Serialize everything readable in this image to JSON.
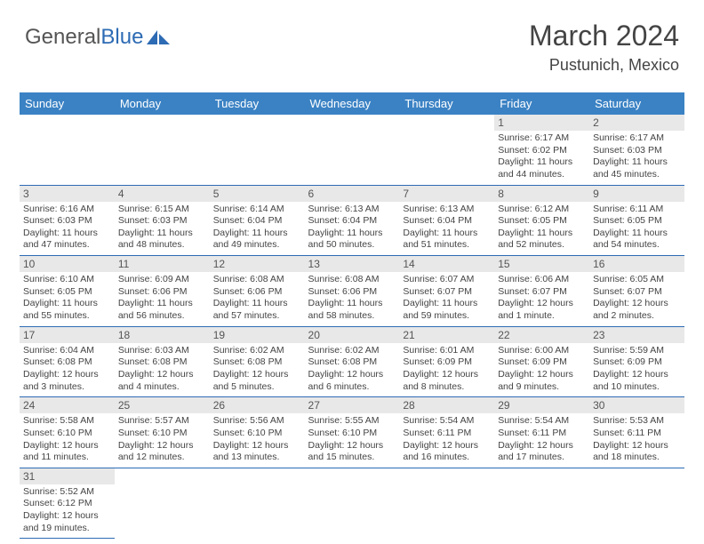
{
  "logo": {
    "text_a": "General",
    "text_b": "Blue"
  },
  "header": {
    "month_title": "March 2024",
    "location": "Pustunich, Mexico"
  },
  "colors": {
    "header_bg": "#3b82c4",
    "header_text": "#ffffff",
    "daynum_bg": "#e8e8e8",
    "border": "#2d6bb4",
    "text": "#444444",
    "logo_gray": "#555555",
    "logo_blue": "#2d6bb4"
  },
  "day_names": [
    "Sunday",
    "Monday",
    "Tuesday",
    "Wednesday",
    "Thursday",
    "Friday",
    "Saturday"
  ],
  "weeks": [
    [
      {
        "n": "",
        "sr": "",
        "ss": "",
        "dl": ""
      },
      {
        "n": "",
        "sr": "",
        "ss": "",
        "dl": ""
      },
      {
        "n": "",
        "sr": "",
        "ss": "",
        "dl": ""
      },
      {
        "n": "",
        "sr": "",
        "ss": "",
        "dl": ""
      },
      {
        "n": "",
        "sr": "",
        "ss": "",
        "dl": ""
      },
      {
        "n": "1",
        "sr": "Sunrise: 6:17 AM",
        "ss": "Sunset: 6:02 PM",
        "dl": "Daylight: 11 hours and 44 minutes."
      },
      {
        "n": "2",
        "sr": "Sunrise: 6:17 AM",
        "ss": "Sunset: 6:03 PM",
        "dl": "Daylight: 11 hours and 45 minutes."
      }
    ],
    [
      {
        "n": "3",
        "sr": "Sunrise: 6:16 AM",
        "ss": "Sunset: 6:03 PM",
        "dl": "Daylight: 11 hours and 47 minutes."
      },
      {
        "n": "4",
        "sr": "Sunrise: 6:15 AM",
        "ss": "Sunset: 6:03 PM",
        "dl": "Daylight: 11 hours and 48 minutes."
      },
      {
        "n": "5",
        "sr": "Sunrise: 6:14 AM",
        "ss": "Sunset: 6:04 PM",
        "dl": "Daylight: 11 hours and 49 minutes."
      },
      {
        "n": "6",
        "sr": "Sunrise: 6:13 AM",
        "ss": "Sunset: 6:04 PM",
        "dl": "Daylight: 11 hours and 50 minutes."
      },
      {
        "n": "7",
        "sr": "Sunrise: 6:13 AM",
        "ss": "Sunset: 6:04 PM",
        "dl": "Daylight: 11 hours and 51 minutes."
      },
      {
        "n": "8",
        "sr": "Sunrise: 6:12 AM",
        "ss": "Sunset: 6:05 PM",
        "dl": "Daylight: 11 hours and 52 minutes."
      },
      {
        "n": "9",
        "sr": "Sunrise: 6:11 AM",
        "ss": "Sunset: 6:05 PM",
        "dl": "Daylight: 11 hours and 54 minutes."
      }
    ],
    [
      {
        "n": "10",
        "sr": "Sunrise: 6:10 AM",
        "ss": "Sunset: 6:05 PM",
        "dl": "Daylight: 11 hours and 55 minutes."
      },
      {
        "n": "11",
        "sr": "Sunrise: 6:09 AM",
        "ss": "Sunset: 6:06 PM",
        "dl": "Daylight: 11 hours and 56 minutes."
      },
      {
        "n": "12",
        "sr": "Sunrise: 6:08 AM",
        "ss": "Sunset: 6:06 PM",
        "dl": "Daylight: 11 hours and 57 minutes."
      },
      {
        "n": "13",
        "sr": "Sunrise: 6:08 AM",
        "ss": "Sunset: 6:06 PM",
        "dl": "Daylight: 11 hours and 58 minutes."
      },
      {
        "n": "14",
        "sr": "Sunrise: 6:07 AM",
        "ss": "Sunset: 6:07 PM",
        "dl": "Daylight: 11 hours and 59 minutes."
      },
      {
        "n": "15",
        "sr": "Sunrise: 6:06 AM",
        "ss": "Sunset: 6:07 PM",
        "dl": "Daylight: 12 hours and 1 minute."
      },
      {
        "n": "16",
        "sr": "Sunrise: 6:05 AM",
        "ss": "Sunset: 6:07 PM",
        "dl": "Daylight: 12 hours and 2 minutes."
      }
    ],
    [
      {
        "n": "17",
        "sr": "Sunrise: 6:04 AM",
        "ss": "Sunset: 6:08 PM",
        "dl": "Daylight: 12 hours and 3 minutes."
      },
      {
        "n": "18",
        "sr": "Sunrise: 6:03 AM",
        "ss": "Sunset: 6:08 PM",
        "dl": "Daylight: 12 hours and 4 minutes."
      },
      {
        "n": "19",
        "sr": "Sunrise: 6:02 AM",
        "ss": "Sunset: 6:08 PM",
        "dl": "Daylight: 12 hours and 5 minutes."
      },
      {
        "n": "20",
        "sr": "Sunrise: 6:02 AM",
        "ss": "Sunset: 6:08 PM",
        "dl": "Daylight: 12 hours and 6 minutes."
      },
      {
        "n": "21",
        "sr": "Sunrise: 6:01 AM",
        "ss": "Sunset: 6:09 PM",
        "dl": "Daylight: 12 hours and 8 minutes."
      },
      {
        "n": "22",
        "sr": "Sunrise: 6:00 AM",
        "ss": "Sunset: 6:09 PM",
        "dl": "Daylight: 12 hours and 9 minutes."
      },
      {
        "n": "23",
        "sr": "Sunrise: 5:59 AM",
        "ss": "Sunset: 6:09 PM",
        "dl": "Daylight: 12 hours and 10 minutes."
      }
    ],
    [
      {
        "n": "24",
        "sr": "Sunrise: 5:58 AM",
        "ss": "Sunset: 6:10 PM",
        "dl": "Daylight: 12 hours and 11 minutes."
      },
      {
        "n": "25",
        "sr": "Sunrise: 5:57 AM",
        "ss": "Sunset: 6:10 PM",
        "dl": "Daylight: 12 hours and 12 minutes."
      },
      {
        "n": "26",
        "sr": "Sunrise: 5:56 AM",
        "ss": "Sunset: 6:10 PM",
        "dl": "Daylight: 12 hours and 13 minutes."
      },
      {
        "n": "27",
        "sr": "Sunrise: 5:55 AM",
        "ss": "Sunset: 6:10 PM",
        "dl": "Daylight: 12 hours and 15 minutes."
      },
      {
        "n": "28",
        "sr": "Sunrise: 5:54 AM",
        "ss": "Sunset: 6:11 PM",
        "dl": "Daylight: 12 hours and 16 minutes."
      },
      {
        "n": "29",
        "sr": "Sunrise: 5:54 AM",
        "ss": "Sunset: 6:11 PM",
        "dl": "Daylight: 12 hours and 17 minutes."
      },
      {
        "n": "30",
        "sr": "Sunrise: 5:53 AM",
        "ss": "Sunset: 6:11 PM",
        "dl": "Daylight: 12 hours and 18 minutes."
      }
    ],
    [
      {
        "n": "31",
        "sr": "Sunrise: 5:52 AM",
        "ss": "Sunset: 6:12 PM",
        "dl": "Daylight: 12 hours and 19 minutes."
      },
      {
        "n": "",
        "sr": "",
        "ss": "",
        "dl": ""
      },
      {
        "n": "",
        "sr": "",
        "ss": "",
        "dl": ""
      },
      {
        "n": "",
        "sr": "",
        "ss": "",
        "dl": ""
      },
      {
        "n": "",
        "sr": "",
        "ss": "",
        "dl": ""
      },
      {
        "n": "",
        "sr": "",
        "ss": "",
        "dl": ""
      },
      {
        "n": "",
        "sr": "",
        "ss": "",
        "dl": ""
      }
    ]
  ]
}
